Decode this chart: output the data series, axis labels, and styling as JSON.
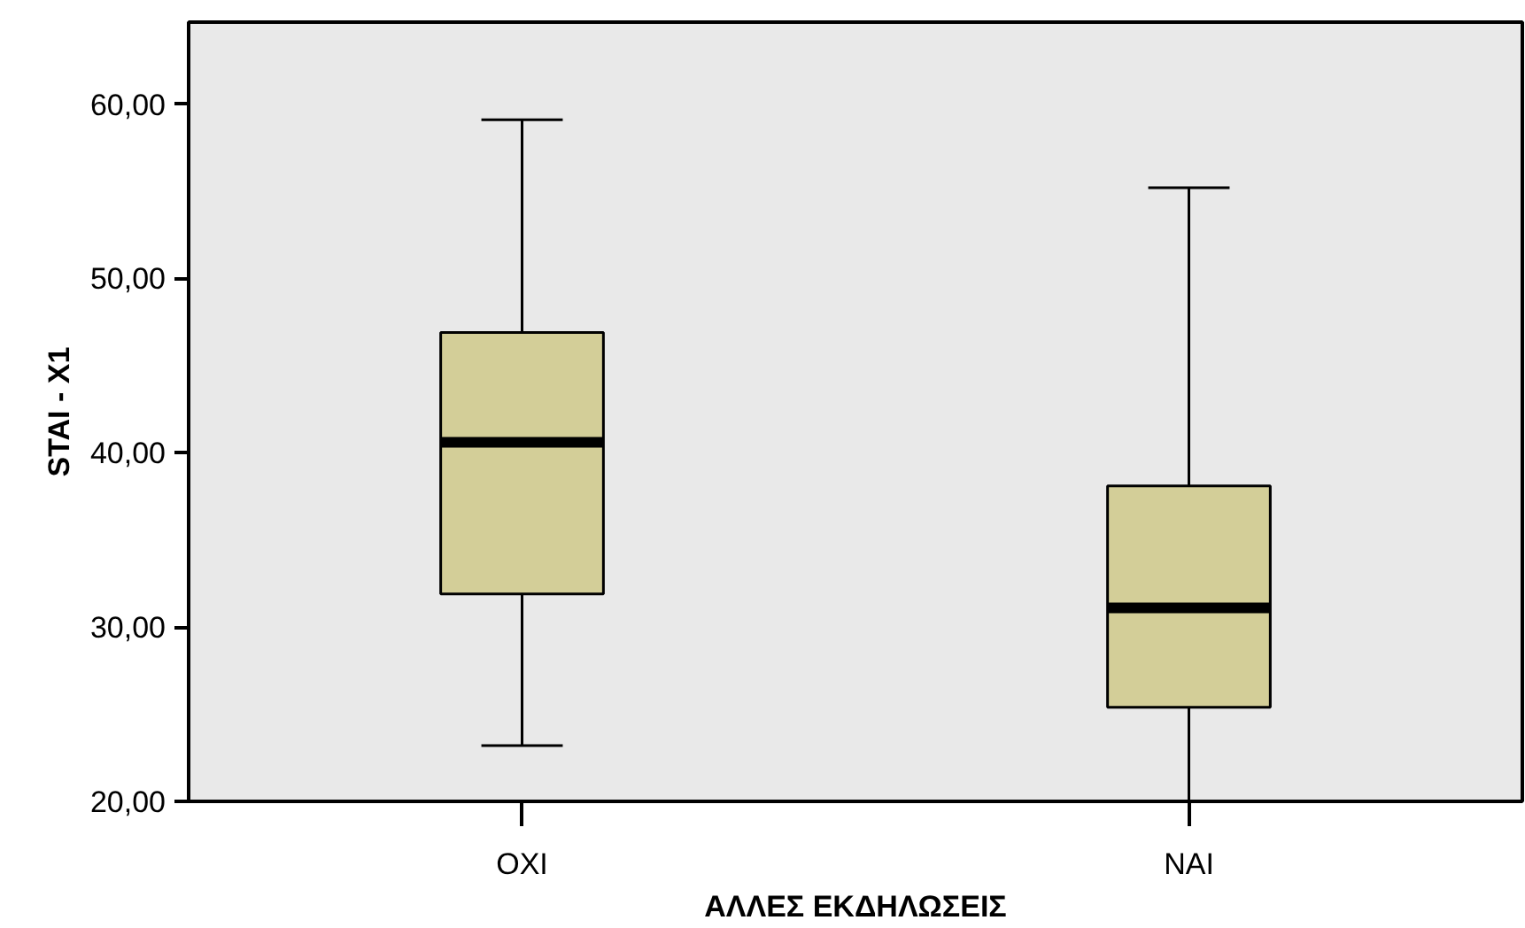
{
  "chart_data": {
    "type": "box",
    "xlabel": "ΑΛΛΕΣ ΕΚΔΗΛΩΣΕΙΣ",
    "ylabel": "STAI - X1",
    "categories": [
      "ΟΧΙ",
      "ΝΑΙ"
    ],
    "series": [
      {
        "color": "#d3ce98",
        "boxes": [
          {
            "low": 23.2,
            "q1": 31.9,
            "median": 40.6,
            "q3": 46.9,
            "high": 59.1
          },
          {
            "low": 20.0,
            "q1": 25.4,
            "median": 31.1,
            "q3": 38.1,
            "high": 55.2
          }
        ]
      }
    ],
    "ylim": [
      20,
      64.7
    ],
    "yticks": [
      {
        "value": 20,
        "label": "20,00"
      },
      {
        "value": 30,
        "label": "30,00"
      },
      {
        "value": 40,
        "label": "40,00"
      },
      {
        "value": 50,
        "label": "50,00"
      },
      {
        "value": 60,
        "label": "60,00"
      }
    ],
    "grid": false
  }
}
